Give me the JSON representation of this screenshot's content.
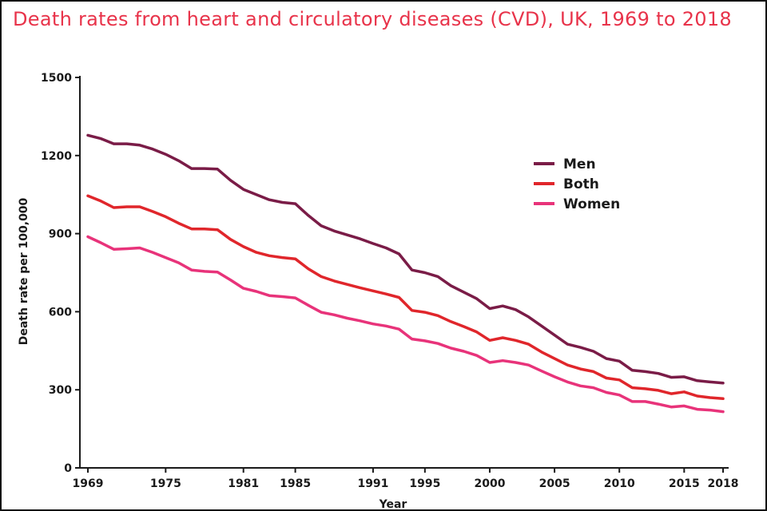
{
  "chart_data": {
    "type": "line",
    "title": "Death rates from heart and circulatory diseases (CVD), UK, 1969 to 2018",
    "xlabel": "Year",
    "ylabel": "Death rate per 100,000",
    "xlim": [
      1969,
      2018
    ],
    "ylim": [
      0,
      1500
    ],
    "y_ticks": [
      0,
      300,
      600,
      900,
      1200,
      1500
    ],
    "x_ticks": [
      {
        "label": "1969",
        "value": 1969
      },
      {
        "label": "1975",
        "value": 1975
      },
      {
        "label": "1981",
        "value": 1981
      },
      {
        "label": "1985",
        "value": 1985
      },
      {
        "label": "1991",
        "value": 1991
      },
      {
        "label": "1995",
        "value": 1995
      },
      {
        "label": "2000",
        "value": 2000
      },
      {
        "label": "2005",
        "value": 2005
      },
      {
        "label": "2010",
        "value": 2010
      },
      {
        "label": "2015",
        "value": 2015
      },
      {
        "label": "2018",
        "value": 2018
      }
    ],
    "legend_position": "top-right",
    "x": [
      1969,
      1970,
      1971,
      1972,
      1973,
      1974,
      1975,
      1976,
      1977,
      1978,
      1979,
      1980,
      1981,
      1982,
      1983,
      1984,
      1985,
      1986,
      1987,
      1988,
      1989,
      1990,
      1991,
      1992,
      1993,
      1994,
      1995,
      1996,
      1997,
      1998,
      1999,
      2000,
      2001,
      2002,
      2003,
      2004,
      2005,
      2006,
      2007,
      2008,
      2009,
      2010,
      2011,
      2012,
      2013,
      2014,
      2015,
      2016,
      2017,
      2018
    ],
    "series": [
      {
        "name": "Men",
        "color": "#7a1c47",
        "values": [
          1278,
          1265,
          1245,
          1245,
          1240,
          1225,
          1205,
          1180,
          1150,
          1150,
          1148,
          1105,
          1070,
          1050,
          1030,
          1020,
          1015,
          970,
          930,
          910,
          895,
          880,
          862,
          845,
          822,
          760,
          750,
          735,
          700,
          675,
          650,
          612,
          622,
          608,
          580,
          545,
          510,
          475,
          463,
          448,
          420,
          410,
          375,
          370,
          363,
          348,
          350,
          335,
          330,
          326
        ]
      },
      {
        "name": "Both",
        "color": "#e0262b",
        "values": [
          1045,
          1025,
          1000,
          1003,
          1003,
          985,
          965,
          940,
          918,
          918,
          915,
          878,
          850,
          828,
          815,
          808,
          803,
          765,
          735,
          718,
          705,
          692,
          680,
          668,
          655,
          605,
          598,
          585,
          562,
          543,
          522,
          490,
          500,
          490,
          475,
          445,
          420,
          395,
          380,
          370,
          345,
          338,
          308,
          304,
          298,
          285,
          292,
          276,
          270,
          266
        ]
      },
      {
        "name": "Women",
        "color": "#e8337a",
        "values": [
          888,
          865,
          840,
          842,
          845,
          828,
          808,
          788,
          760,
          755,
          752,
          722,
          690,
          678,
          662,
          658,
          653,
          625,
          598,
          588,
          575,
          565,
          553,
          545,
          533,
          495,
          488,
          478,
          460,
          448,
          432,
          405,
          412,
          405,
          395,
          372,
          350,
          330,
          315,
          308,
          290,
          280,
          255,
          255,
          245,
          234,
          238,
          225,
          222,
          216
        ]
      }
    ]
  }
}
